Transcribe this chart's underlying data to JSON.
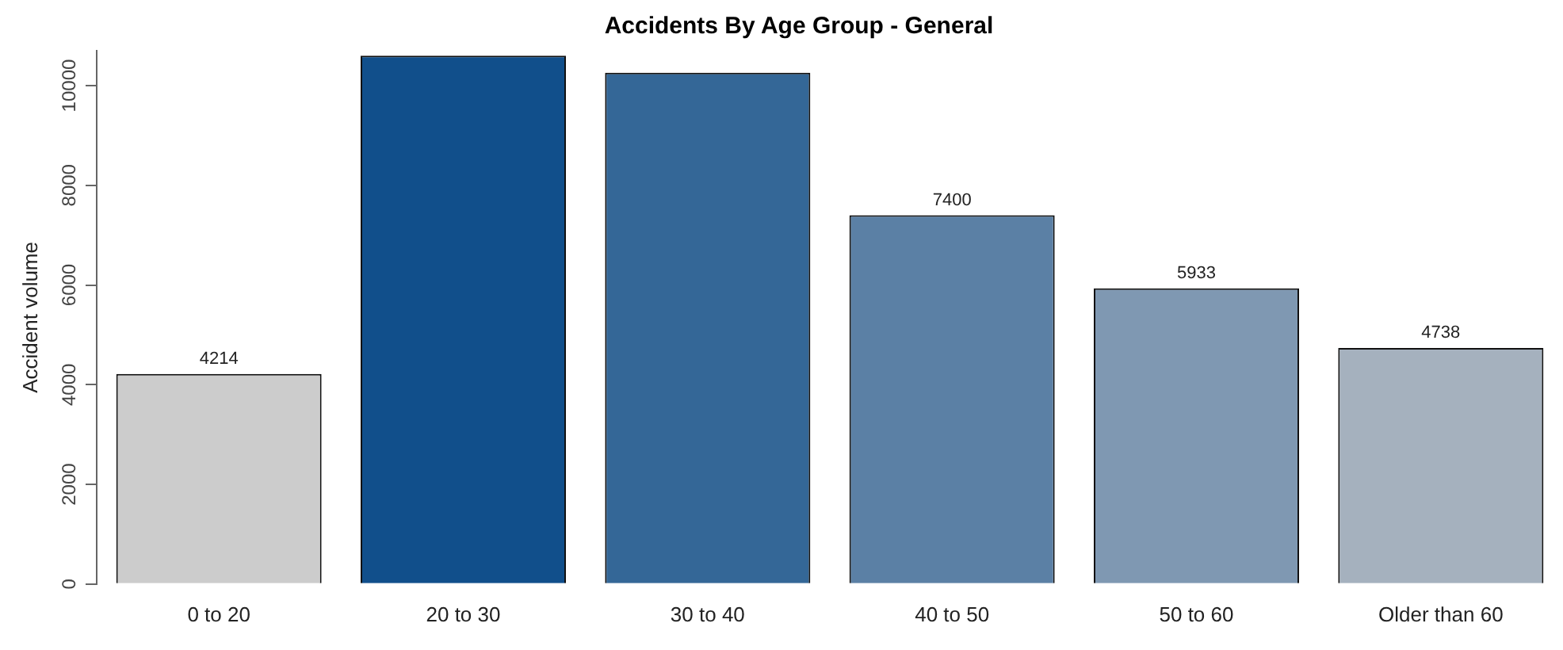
{
  "chart_data": {
    "type": "bar",
    "title": "Accidents By Age Group - General",
    "ylabel": "Accident volume",
    "categories": [
      "0 to 20",
      "20 to 30",
      "30 to 40",
      "40 to 50",
      "50 to 60",
      "Older than 60"
    ],
    "values": [
      4214,
      10600,
      10260,
      7400,
      5933,
      4738
    ],
    "colors": [
      "#cccccc",
      "#114f8b",
      "#346797",
      "#5b80a5",
      "#7f98b2",
      "#a5b1be"
    ],
    "value_labels": [
      "4214",
      null,
      null,
      "7400",
      "5933",
      "4738"
    ],
    "ylim": [
      0,
      10700
    ],
    "yticks": [
      0,
      2000,
      4000,
      6000,
      8000,
      10000
    ],
    "grid": false,
    "legend": false
  }
}
